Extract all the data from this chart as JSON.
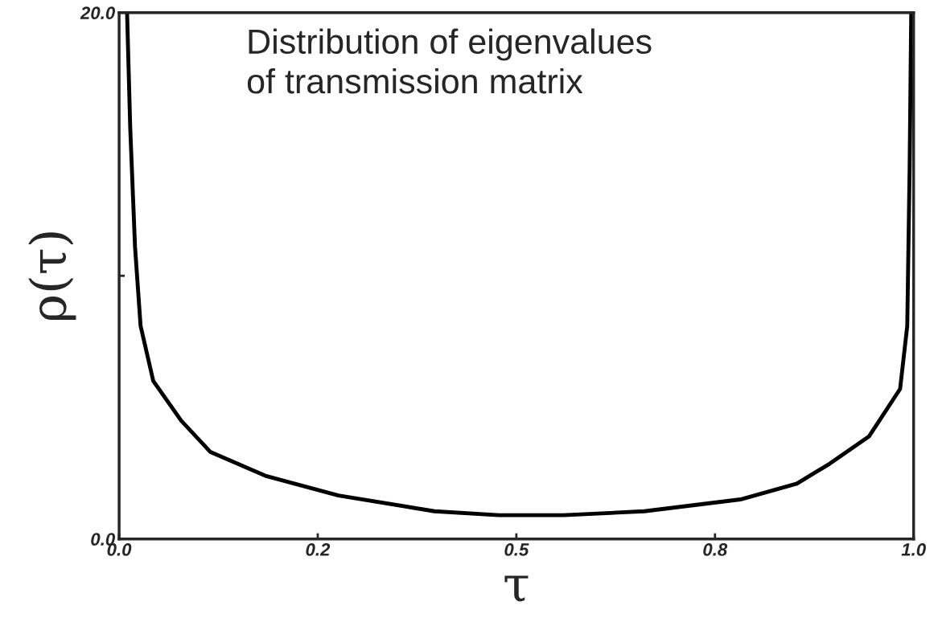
{
  "chart_data": {
    "type": "line",
    "xlabel": "τ",
    "ylabel": "ρ(τ)",
    "annotations": [
      "Distribution of eigenvalues\nof transmission matrix"
    ],
    "x": [
      0.01,
      0.014,
      0.02,
      0.027,
      0.043,
      0.078,
      0.115,
      0.184,
      0.276,
      0.397,
      0.478,
      0.559,
      0.661,
      0.782,
      0.853,
      0.894,
      0.944,
      0.983,
      0.992,
      0.995,
      0.997
    ],
    "series": [
      {
        "color": "#000000",
        "values": [
          20.0,
          15.6,
          11.1,
          8.1,
          6.0,
          4.5,
          3.3,
          2.4,
          1.65,
          1.05,
          0.9,
          0.9,
          1.05,
          1.5,
          2.1,
          2.85,
          3.9,
          5.7,
          8.1,
          14.1,
          20.0
        ]
      }
    ],
    "xlim": [
      0,
      1
    ],
    "ylim": [
      0,
      20
    ],
    "xticks": [
      {
        "value": 0,
        "label": "0.0"
      },
      {
        "value": 0.25,
        "label": "0.2"
      },
      {
        "value": 0.5,
        "label": "0.5"
      },
      {
        "value": 0.75,
        "label": "0.8"
      },
      {
        "value": 1,
        "label": "1.0"
      }
    ],
    "yticks": [
      {
        "value": 0,
        "label": "0.0"
      },
      {
        "value": 10,
        "label": null
      },
      {
        "value": 20,
        "label": "20.0"
      }
    ],
    "grid": false,
    "legend": false,
    "marker": "none",
    "line_style": "solid"
  }
}
